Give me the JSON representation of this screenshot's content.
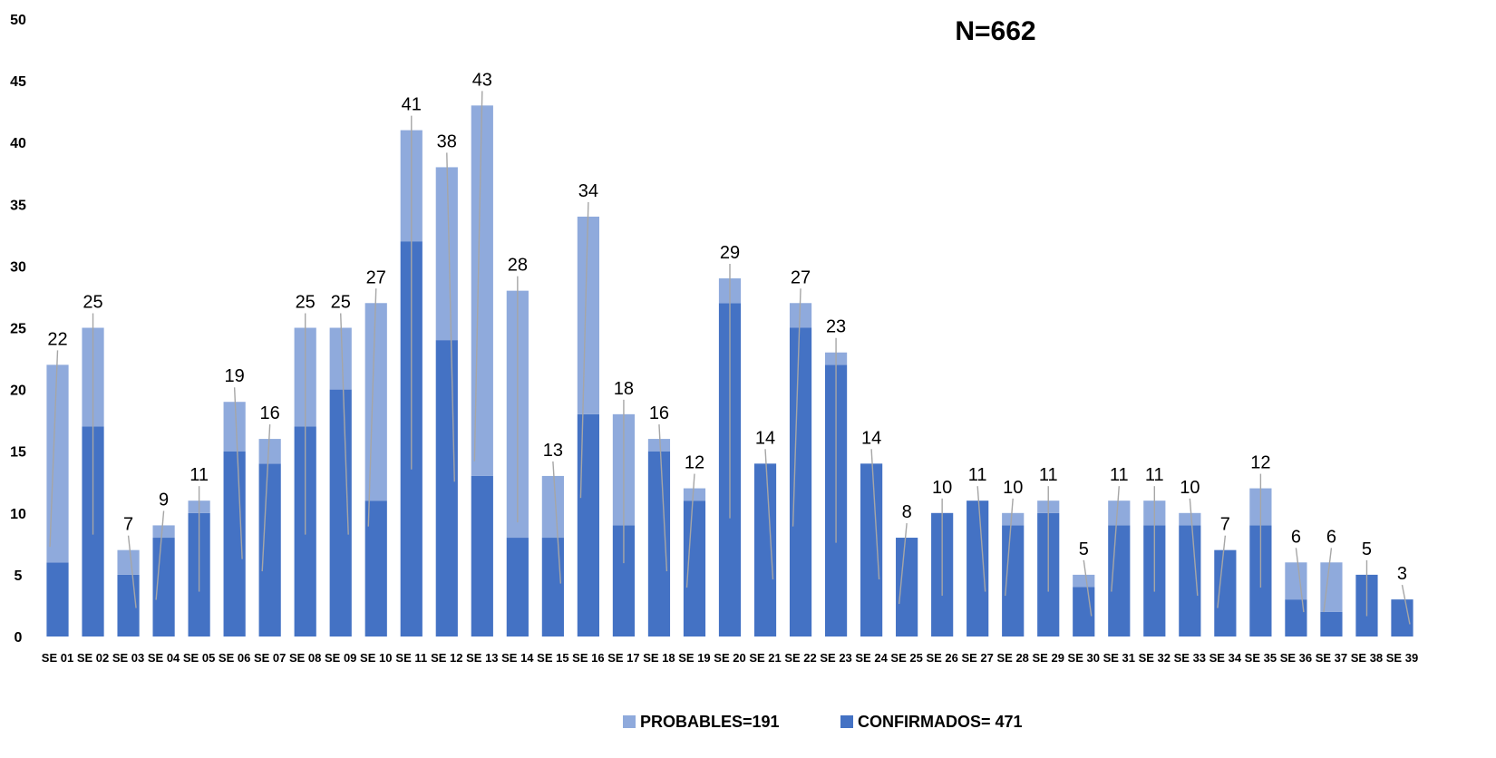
{
  "chart_data": {
    "type": "bar",
    "stacked": true,
    "annotation": "N=662",
    "title": "",
    "xlabel": "",
    "ylabel": "",
    "ylim": [
      0,
      50
    ],
    "yticks": [
      0,
      5,
      10,
      15,
      20,
      25,
      30,
      35,
      40,
      45,
      50
    ],
    "grid": false,
    "legend_position": "bottom",
    "categories": [
      "SE 01",
      "SE 02",
      "SE 03",
      "SE 04",
      "SE 05",
      "SE 06",
      "SE 07",
      "SE 08",
      "SE 09",
      "SE 10",
      "SE 11",
      "SE 12",
      "SE 13",
      "SE 14",
      "SE 15",
      "SE 16",
      "SE 17",
      "SE 18",
      "SE 19",
      "SE 20",
      "SE 21",
      "SE 22",
      "SE 23",
      "SE 24",
      "SE 25",
      "SE 26",
      "SE 27",
      "SE 28",
      "SE 29",
      "SE 30",
      "SE 31",
      "SE 32",
      "SE 33",
      "SE 34",
      "SE 35",
      "SE 36",
      "SE 37",
      "SE 38",
      "SE 39"
    ],
    "series": [
      {
        "name": "CONFIRMADOS= 471",
        "color": "#4472C4",
        "values": [
          6,
          17,
          5,
          8,
          10,
          15,
          14,
          17,
          20,
          11,
          32,
          24,
          13,
          8,
          8,
          18,
          9,
          15,
          11,
          27,
          14,
          25,
          22,
          14,
          8,
          10,
          11,
          9,
          10,
          4,
          9,
          9,
          9,
          7,
          9,
          3,
          2,
          5,
          3
        ]
      },
      {
        "name": "PROBABLES=191",
        "color": "#8FAADC",
        "values": [
          16,
          8,
          2,
          1,
          1,
          4,
          2,
          8,
          5,
          16,
          9,
          14,
          30,
          20,
          5,
          16,
          9,
          1,
          1,
          2,
          0,
          2,
          1,
          0,
          0,
          0,
          0,
          1,
          1,
          1,
          2,
          2,
          1,
          0,
          3,
          3,
          4,
          0,
          0
        ]
      }
    ],
    "totals": [
      22,
      25,
      7,
      9,
      11,
      19,
      16,
      25,
      25,
      27,
      41,
      38,
      43,
      28,
      13,
      34,
      18,
      16,
      12,
      29,
      14,
      27,
      23,
      14,
      8,
      10,
      11,
      10,
      11,
      5,
      11,
      11,
      10,
      7,
      12,
      6,
      6,
      5,
      3
    ]
  }
}
